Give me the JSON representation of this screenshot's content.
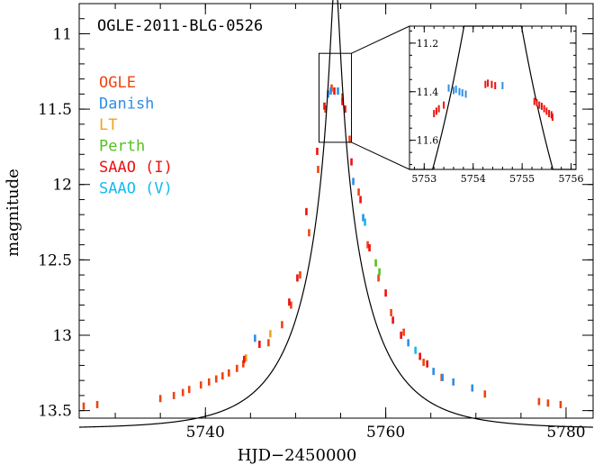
{
  "chart_data": {
    "type": "scatter",
    "title": "OGLE-2011-BLG-0526",
    "xlabel": "HJD−2450000",
    "ylabel": "magnitude",
    "xlim": [
      5726,
      5783
    ],
    "ylim": [
      13.55,
      10.8
    ],
    "y_inverted": true,
    "x_ticks": [
      5740,
      5760,
      5780
    ],
    "y_ticks": [
      11,
      11.5,
      12,
      12.5,
      13,
      13.5
    ],
    "model": {
      "name": "",
      "t0": 5754.4,
      "u0": 0.058,
      "tE": 8.2,
      "baseline": 13.62,
      "blend_fraction": 0.9
    },
    "series": [
      {
        "name": "OGLE",
        "color": "#ee4411",
        "x": [
          5726.5,
          5728,
          5735,
          5736.5,
          5737.5,
          5738.2,
          5739.5,
          5740.4,
          5741.2,
          5741.9,
          5742.6,
          5743.5,
          5744.2,
          5747,
          5748.5,
          5749.5,
          5750.5,
          5751.5,
          5752.5,
          5753.3,
          5754.0,
          5755.2,
          5756.0,
          5757.0,
          5758.0,
          5759.2,
          5760.6,
          5762.0,
          5764.2,
          5766.2,
          5771,
          5777,
          5778,
          5779.4
        ],
        "y": [
          13.47,
          13.46,
          13.42,
          13.4,
          13.38,
          13.36,
          13.33,
          13.31,
          13.29,
          13.27,
          13.25,
          13.22,
          13.19,
          13.05,
          12.93,
          12.8,
          12.6,
          12.32,
          11.9,
          11.5,
          11.36,
          11.42,
          11.7,
          12.05,
          12.4,
          12.62,
          12.85,
          12.98,
          13.18,
          13.28,
          13.39,
          13.44,
          13.45,
          13.46
        ]
      },
      {
        "name": "Danish",
        "color": "#2e8ee6",
        "x": [
          5745.5,
          5753.6,
          5753.9,
          5754.7,
          5756.4,
          5757.5,
          5762.5,
          5765.3,
          5766.3,
          5767.5,
          5769.6
        ],
        "y": [
          13.02,
          11.4,
          11.38,
          11.38,
          11.98,
          12.22,
          13.05,
          13.24,
          13.28,
          13.31,
          13.35
        ]
      },
      {
        "name": "LT",
        "color": "#f5a020",
        "x": [
          5744.5,
          5747.2
        ],
        "y": [
          13.15,
          12.99
        ]
      },
      {
        "name": "Perth",
        "color": "#55c020",
        "x": [
          5758.9,
          5759.3
        ],
        "y": [
          12.52,
          12.58
        ]
      },
      {
        "name": "SAAO (I)",
        "color": "#ee1111",
        "x": [
          5744.3,
          5746,
          5749.3,
          5750.2,
          5751.2,
          5752.4,
          5753.2,
          5754.3,
          5755.2,
          5755.5,
          5756.2,
          5757.2,
          5758.2,
          5760.0,
          5760.8,
          5761.7,
          5763.8,
          5764.6
        ],
        "y": [
          13.16,
          13.06,
          12.78,
          12.62,
          12.18,
          11.78,
          11.48,
          11.38,
          11.45,
          11.5,
          11.85,
          12.1,
          12.42,
          12.72,
          12.9,
          13.0,
          13.14,
          13.19
        ]
      },
      {
        "name": "SAAO (V)",
        "color": "#11bbee",
        "x": [
          5757.7,
          5763.3
        ],
        "y": [
          12.25,
          13.1
        ]
      }
    ],
    "inset": {
      "xlim": [
        5752.7,
        5756.1
      ],
      "ylim": [
        11.72,
        11.13
      ],
      "x_ticks": [
        5753,
        5754,
        5755,
        5756
      ],
      "y_ticks": [
        11.2,
        11.4,
        11.6
      ],
      "series": [
        {
          "name": "Danish",
          "color": "#2e8ee6",
          "x": [
            5753.5,
            5753.6,
            5753.65,
            5753.72,
            5753.78,
            5753.85,
            5754.6
          ],
          "y": [
            11.385,
            11.395,
            11.39,
            11.4,
            11.405,
            11.41,
            11.375
          ]
        },
        {
          "name": "SAAO (I)",
          "color": "#ee1111",
          "x": [
            5753.2,
            5753.25,
            5753.3,
            5753.4,
            5754.25,
            5754.3,
            5754.38,
            5754.45,
            5755.25,
            5755.3,
            5755.35,
            5755.4,
            5755.45,
            5755.5,
            5755.55,
            5755.6,
            5755.62
          ],
          "y": [
            11.49,
            11.48,
            11.47,
            11.455,
            11.37,
            11.365,
            11.37,
            11.375,
            11.44,
            11.445,
            11.455,
            11.46,
            11.47,
            11.48,
            11.49,
            11.495,
            11.505
          ]
        }
      ]
    },
    "legend_position": "top-left",
    "grid": false
  }
}
